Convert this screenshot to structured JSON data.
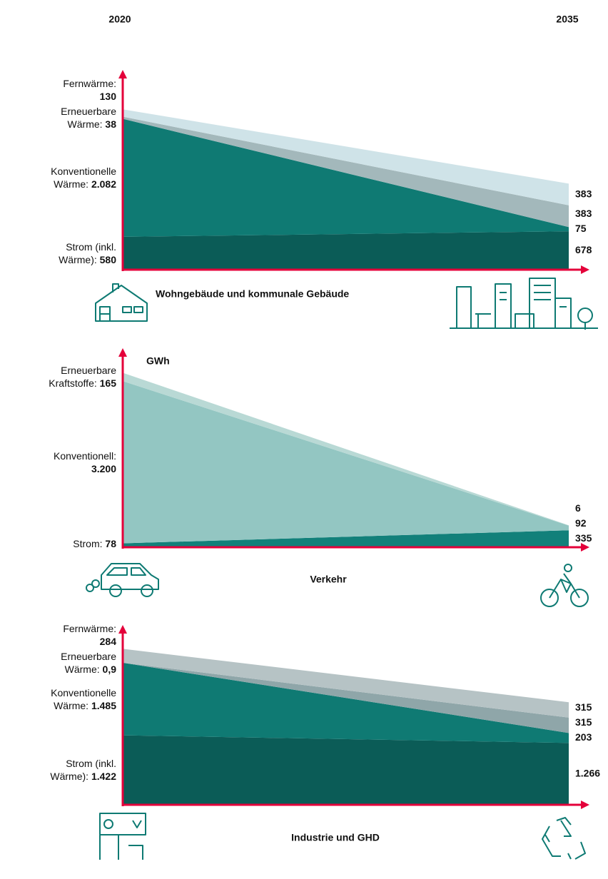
{
  "header": {
    "start_year": "2020",
    "end_year": "2035"
  },
  "chart_data": [
    {
      "type": "stacked_area",
      "title": "Wohngebäude und kommunale Gebäude",
      "ylim": [
        0,
        3500
      ],
      "series": [
        {
          "name": "Strom (inkl. Wärme):",
          "color": "#0b5c57",
          "values": [
            580,
            678
          ],
          "value_labels": [
            "580",
            "678"
          ]
        },
        {
          "name": "Konventionelle Wärme:",
          "color": "#0f7a73",
          "values": [
            2082,
            75
          ],
          "value_labels": [
            "2.082",
            "75"
          ]
        },
        {
          "name": "Erneuerbare Wärme:",
          "color": "#a3b8bb",
          "values": [
            38,
            383
          ],
          "value_labels": [
            "38",
            "383"
          ]
        },
        {
          "name": "Fernwärme:",
          "color": "#cfe3e8",
          "values": [
            130,
            383
          ],
          "value_labels": [
            "130",
            "383"
          ]
        }
      ]
    },
    {
      "type": "stacked_area",
      "title": "Verkehr",
      "unit": "GWh",
      "ylim": [
        0,
        3900
      ],
      "series": [
        {
          "name": "Strom:",
          "color": "#12807a",
          "values": [
            78,
            335
          ],
          "value_labels": [
            "78",
            "335"
          ]
        },
        {
          "name": "Konventionell:",
          "color": "#93c6c2",
          "values": [
            3200,
            92
          ],
          "value_labels": [
            "3.200",
            "92"
          ]
        },
        {
          "name": "Erneuerbare Kraftstoffe:",
          "color": "#b9d9d5",
          "values": [
            165,
            6
          ],
          "value_labels": [
            "165",
            "6"
          ]
        }
      ]
    },
    {
      "type": "stacked_area",
      "title": "Industrie und GHD",
      "ylim": [
        0,
        3650
      ],
      "series": [
        {
          "name": "Strom (inkl. Wärme):",
          "color": "#0b5c57",
          "values": [
            1422,
            1266
          ],
          "value_labels": [
            "1.422",
            "1.266"
          ]
        },
        {
          "name": "Konventionelle Wärme:",
          "color": "#0f7a73",
          "values": [
            1485,
            203
          ],
          "value_labels": [
            "1.485",
            "203"
          ]
        },
        {
          "name": "Erneuerbare Wärme:",
          "color": "#8fa6a9",
          "values": [
            0.9,
            315
          ],
          "value_labels": [
            "0,9",
            "315"
          ]
        },
        {
          "name": "Fernwärme:",
          "color": "#b6c3c5",
          "values": [
            284,
            315
          ],
          "value_labels": [
            "284",
            "315"
          ]
        }
      ]
    }
  ]
}
